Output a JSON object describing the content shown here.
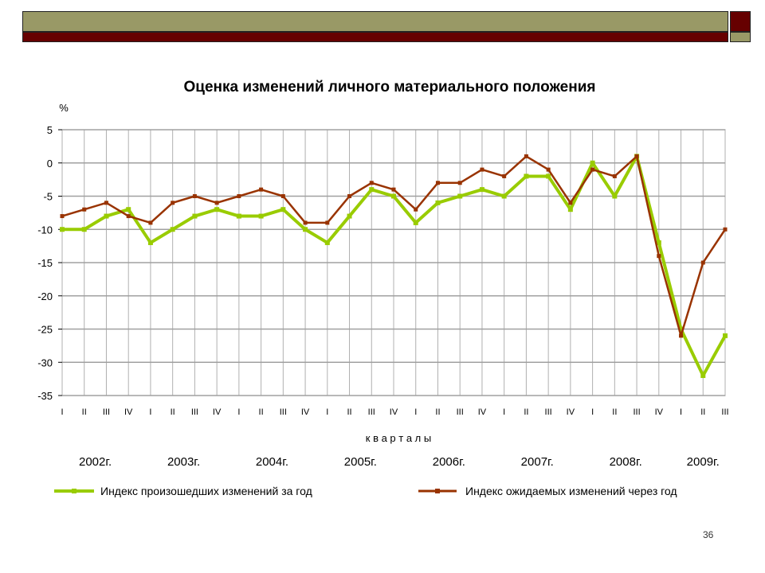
{
  "slide": {
    "page_number": "36",
    "colors": {
      "olive": "#999966",
      "dark_red": "#660000"
    }
  },
  "chart_data": {
    "type": "line",
    "title": "Оценка изменений личного материального положения",
    "ylabel": "%",
    "xlabel": "к в а р т а л ы",
    "ylim": [
      -35,
      5
    ],
    "yticks": [
      "5",
      "0",
      "-5",
      "-10",
      "-15",
      "-20",
      "-25",
      "-30",
      "-35"
    ],
    "grid": true,
    "legend_position": "bottom",
    "categories": [
      "I",
      "II",
      "III",
      "IV",
      "I",
      "II",
      "III",
      "IV",
      "I",
      "II",
      "III",
      "IV",
      "I",
      "II",
      "III",
      "IV",
      "I",
      "II",
      "III",
      "IV",
      "I",
      "II",
      "III",
      "IV",
      "I",
      "II",
      "III",
      "IV",
      "I",
      "II",
      "III"
    ],
    "years": [
      {
        "label": "2002г.",
        "start": 0,
        "end": 3
      },
      {
        "label": "2003г.",
        "start": 4,
        "end": 7
      },
      {
        "label": "2004г.",
        "start": 8,
        "end": 11
      },
      {
        "label": "2005г.",
        "start": 12,
        "end": 15
      },
      {
        "label": "2006г.",
        "start": 16,
        "end": 19
      },
      {
        "label": "2007г.",
        "start": 20,
        "end": 23
      },
      {
        "label": "2008г.",
        "start": 24,
        "end": 27
      },
      {
        "label": "2009г.",
        "start": 28,
        "end": 30
      }
    ],
    "series": [
      {
        "name": "Индекс произошедших изменений за год",
        "color": "#99cc00",
        "values": [
          -10,
          -10,
          -8,
          -7,
          -12,
          -10,
          -8,
          -7,
          -8,
          -8,
          -7,
          -10,
          -12,
          -8,
          -4,
          -5,
          -9,
          -6,
          -5,
          -4,
          -5,
          -2,
          -2,
          -7,
          0,
          -5,
          1,
          -12,
          -25,
          -32,
          -26
        ]
      },
      {
        "name": "Индекс ожидаемых изменений через год",
        "color": "#993300",
        "values": [
          -8,
          -7,
          -6,
          -8,
          -9,
          -6,
          -5,
          -6,
          -5,
          -4,
          -5,
          -9,
          -9,
          -5,
          -3,
          -4,
          -7,
          -3,
          -3,
          -1,
          -2,
          1,
          -1,
          -6,
          -1,
          -2,
          1,
          -14,
          -26,
          -15,
          -10
        ]
      }
    ]
  }
}
